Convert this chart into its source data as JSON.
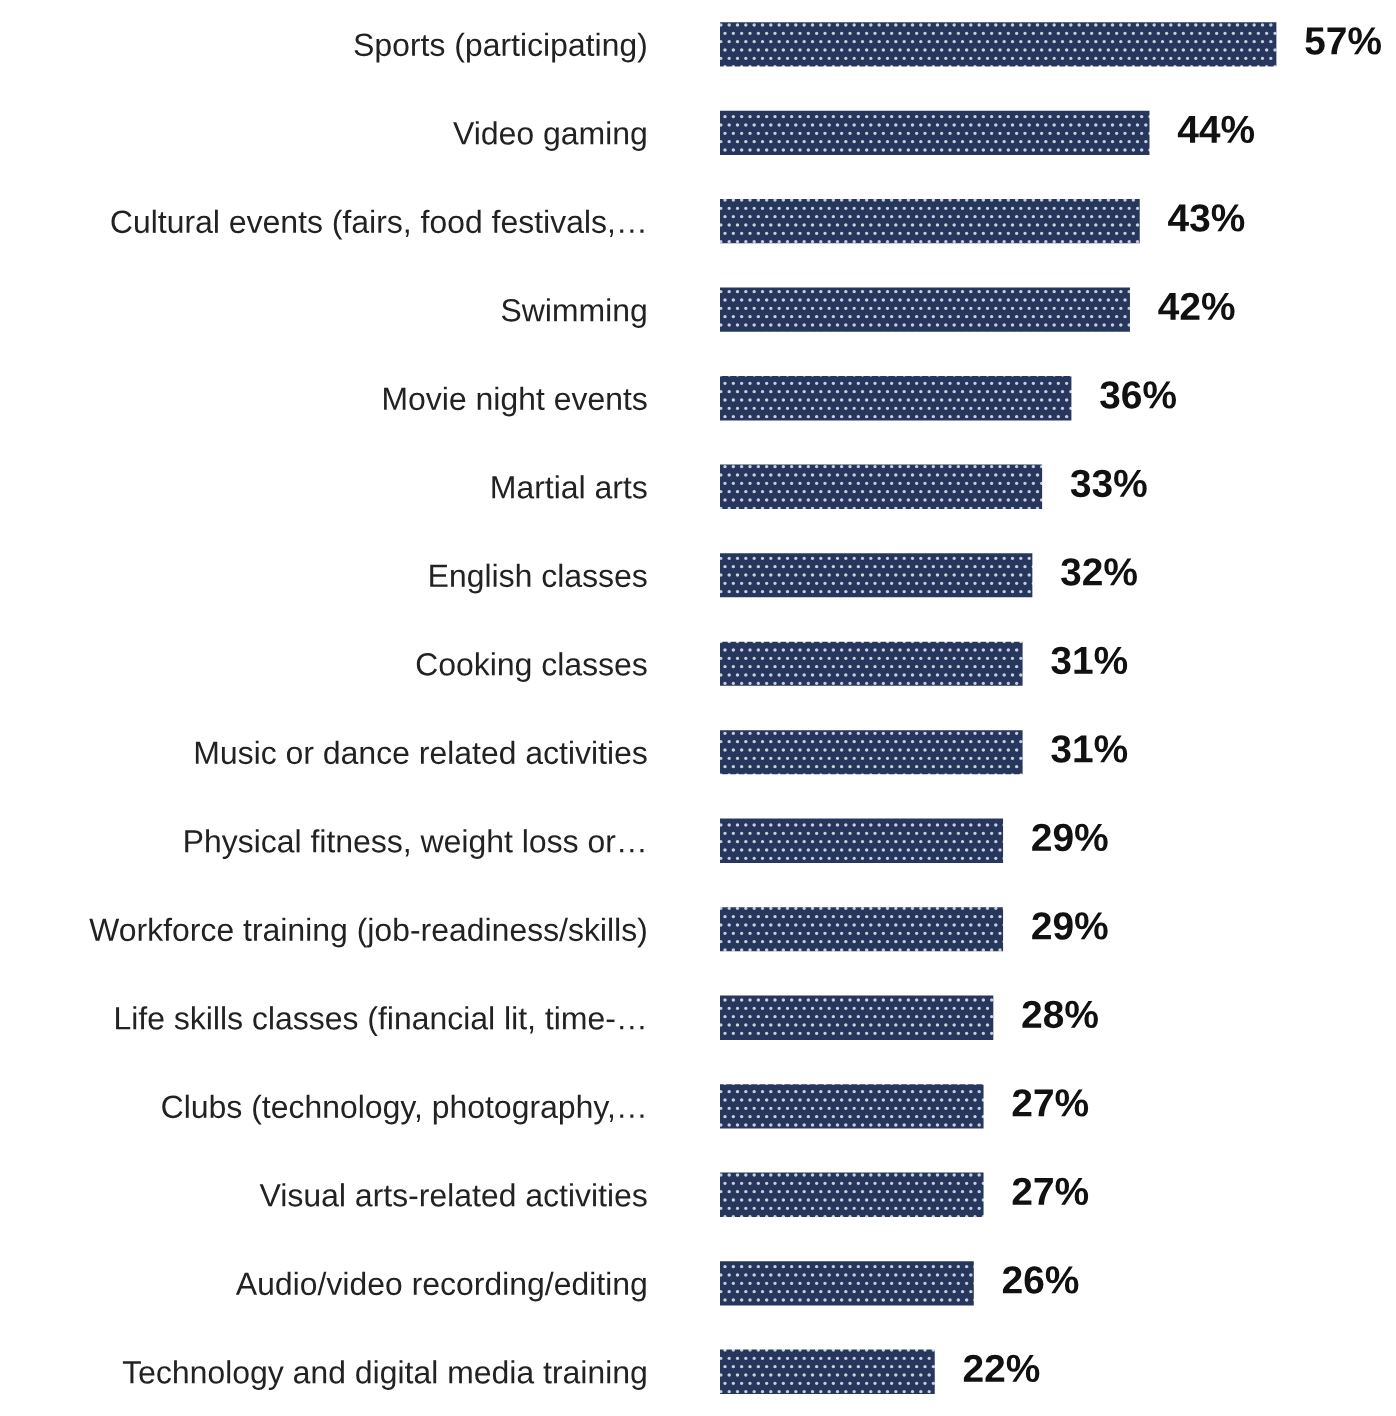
{
  "chart_data": {
    "type": "bar",
    "orientation": "horizontal",
    "categories": [
      "Sports (participating)",
      "Video gaming",
      "Cultural events (fairs, food festivals,…",
      "Swimming",
      "Movie night events",
      "Martial arts",
      "English classes",
      "Cooking classes",
      "Music or dance related activities",
      "Physical fitness, weight loss or…",
      "Workforce training (job-readiness/skills)",
      "Life skills classes (financial lit, time-…",
      "Clubs (technology, photography,…",
      "Visual arts-related activities",
      "Audio/video recording/editing",
      "Technology and digital media training"
    ],
    "values": [
      57,
      44,
      43,
      42,
      36,
      33,
      32,
      31,
      31,
      29,
      29,
      28,
      27,
      27,
      26,
      22
    ],
    "value_labels": [
      "57%",
      "44%",
      "43%",
      "42%",
      "36%",
      "33%",
      "32%",
      "31%",
      "31%",
      "29%",
      "29%",
      "28%",
      "27%",
      "27%",
      "26%",
      "22%"
    ],
    "color": "#26365c",
    "grid": false,
    "legend": false
  }
}
